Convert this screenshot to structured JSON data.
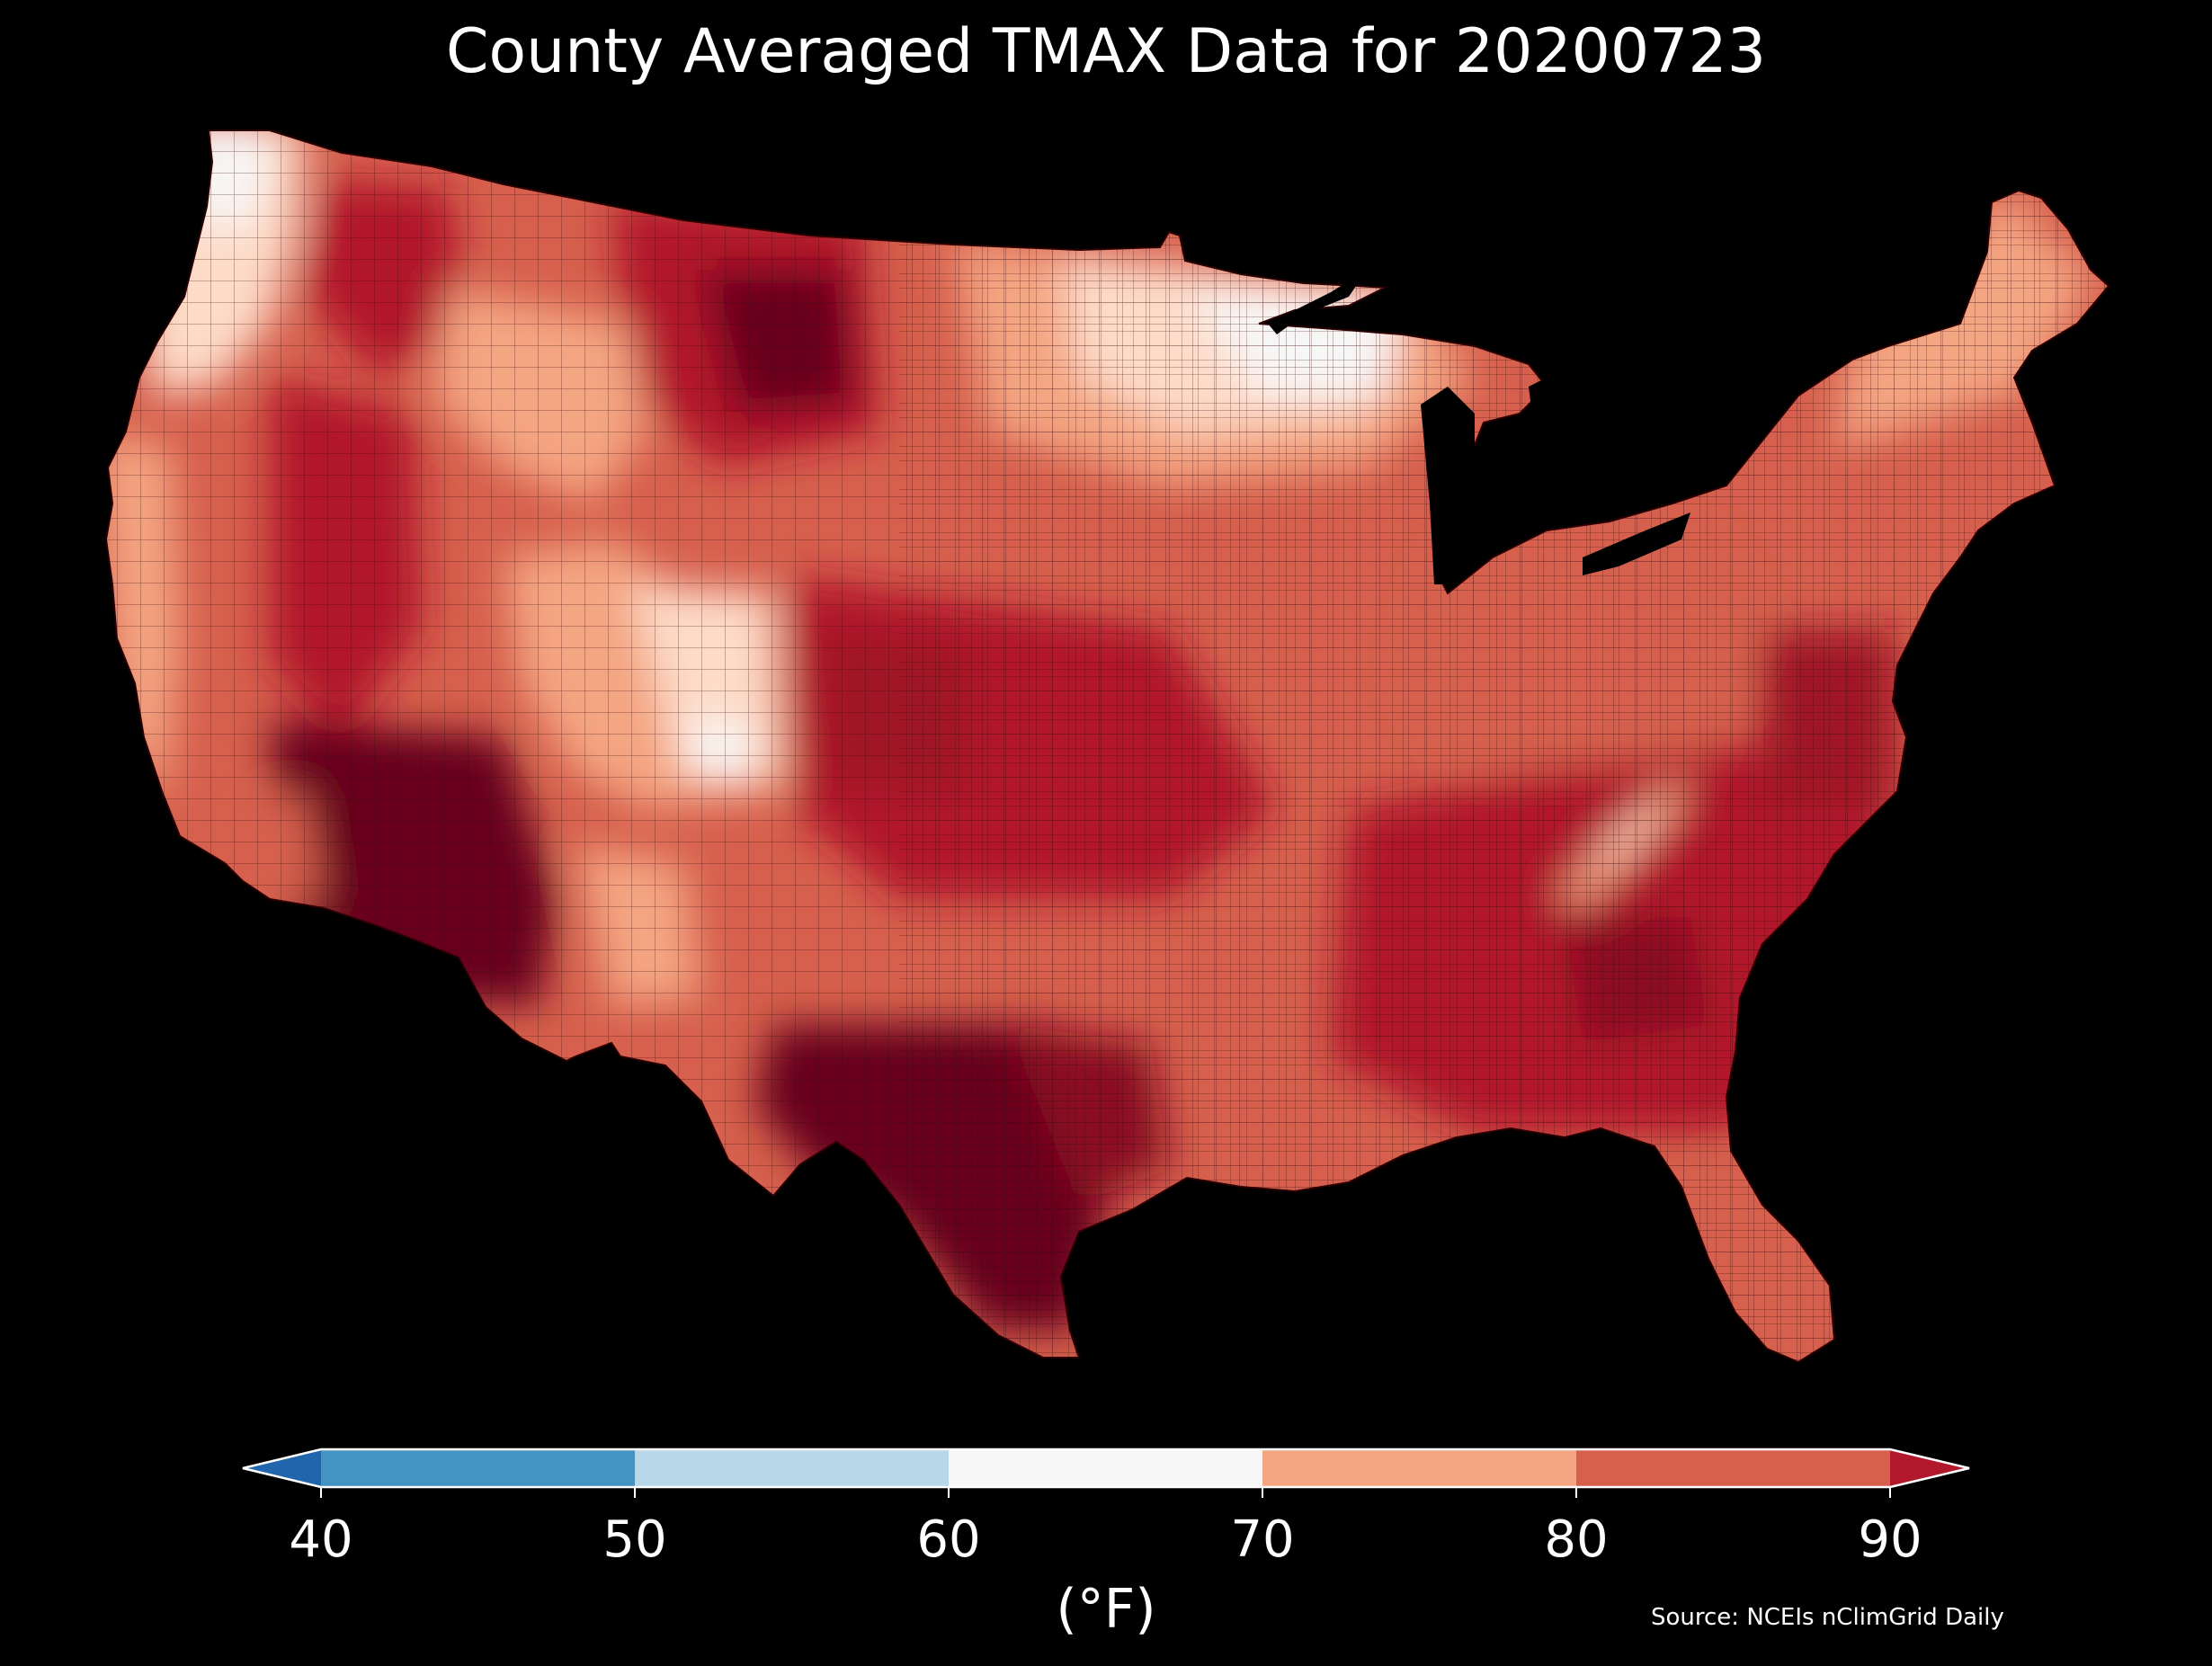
{
  "title": "County Averaged TMAX Data for 20200723",
  "colorbar": {
    "ticks": [
      "40",
      "50",
      "60",
      "70",
      "80",
      "90"
    ],
    "bins": [
      {
        "from": 30,
        "to": 40,
        "color": "#2166ac"
      },
      {
        "from": 40,
        "to": 50,
        "color": "#4393c3"
      },
      {
        "from": 50,
        "to": 60,
        "color": "#b8d8ea"
      },
      {
        "from": 60,
        "to": 70,
        "color": "#f7f7f7"
      },
      {
        "from": 70,
        "to": 80,
        "color": "#f4a582"
      },
      {
        "from": 80,
        "to": 90,
        "color": "#d6604d"
      },
      {
        "from": 90,
        "to": 100,
        "color": "#b2182b"
      }
    ],
    "extend": "both",
    "label": "(°F)"
  },
  "source": "Source: NCEIs nClimGrid Daily",
  "colors": {
    "background": "#000000",
    "over": "#67001f",
    "hot": "#b2182b",
    "warm": "#d6604d",
    "mild": "#f4a582",
    "cool": "#fddbc7",
    "cold": "#f7f7f7"
  }
}
